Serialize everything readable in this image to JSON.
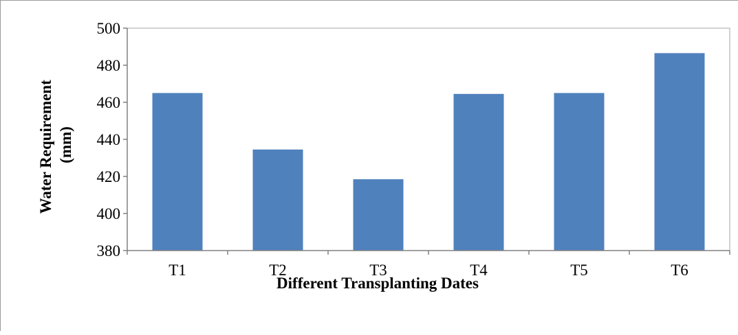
{
  "chart_data": {
    "type": "bar",
    "categories": [
      "T1",
      "T2",
      "T3",
      "T4",
      "T5",
      "T6"
    ],
    "values": [
      465,
      434.5,
      418.5,
      464.5,
      465,
      486.5
    ],
    "xlabel": "Different Transplanting Dates",
    "ylabel_lines": [
      "Water Requirement",
      "(mm)"
    ],
    "yticks": [
      380,
      400,
      420,
      440,
      460,
      480,
      500
    ],
    "ylim": [
      380,
      500
    ],
    "grid": false,
    "legend": "none",
    "bar_color": "#4f81bd",
    "axis_color": "#808080"
  }
}
